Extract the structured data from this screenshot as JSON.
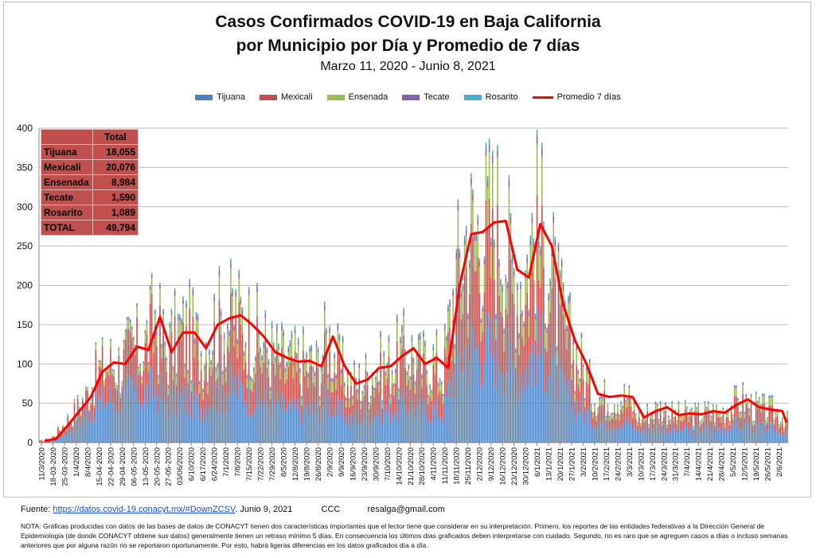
{
  "header": {
    "title_line1": "Casos Confirmados COVID-19 en Baja California",
    "title_line2": "por Municipio por Día y Promedio de 7 días",
    "subtitle": "Marzo 11, 2020  - Junio 8, 2021"
  },
  "colors": {
    "Tijuana": "#4f81bd",
    "Mexicali": "#c0504d",
    "Ensenada": "#9bbb59",
    "Tecate": "#8064a2",
    "Rosarito": "#4bacc6",
    "avg": "#ff0000",
    "table_bg": "#c0504d"
  },
  "legend": [
    "Tijuana",
    "Mexicali",
    "Ensenada",
    "Tecate",
    "Rosarito",
    "Promedio 7 días"
  ],
  "totals_table": {
    "header": "Total",
    "rows": [
      {
        "label": "Tijuana",
        "value": "18,055"
      },
      {
        "label": "Mexicali",
        "value": "20,076"
      },
      {
        "label": "Ensenada",
        "value": "8,984"
      },
      {
        "label": "Tecate",
        "value": "1,590"
      },
      {
        "label": "Rosarito",
        "value": "1,089"
      },
      {
        "label": "TOTAL",
        "value": "49,794"
      }
    ]
  },
  "chart_data": {
    "type": "bar",
    "stacked": true,
    "ylim": [
      0,
      400
    ],
    "yticks": [
      0,
      50,
      100,
      150,
      200,
      250,
      300,
      350,
      400
    ],
    "grid": true,
    "legend_placement": "top",
    "x_tick_labels": [
      "11/3/2020",
      "18-03-2020",
      "25-03-2020",
      "1/4/2020",
      "8/4/2020",
      "15-04-2020",
      "22-04-2020",
      "29-04-2020",
      "06-05-2020",
      "13-05-2020",
      "20-05-2020",
      "27-05-2020",
      "03/06/2020",
      "6/10/2020",
      "6/17/2020",
      "6/24/2020",
      "7/1/2020",
      "7/8/2020",
      "7/15/2020",
      "7/22/2020",
      "7/29/2020",
      "8/5/2020",
      "12/8/2020",
      "19/8/2020",
      "26/8/2020",
      "2/9/2020",
      "9/9/2020",
      "16/9/2020",
      "23/9/2020",
      "30/9/2020",
      "7/10/2020",
      "14/10/2020",
      "21/10/2020",
      "28/10/2020",
      "4/11/2020",
      "11/11/2020",
      "18/11/2020",
      "25/11/2020",
      "2/12/2020",
      "9/12/2020",
      "16/12/2020",
      "23/12/2020",
      "30/12/2020",
      "6/1/2021",
      "13/1/2021",
      "20/1/2021",
      "27/1/2021",
      "3/2/2021",
      "10/2/2021",
      "17/2/2021",
      "24/2/2021",
      "3/3/2021",
      "10/3/2021",
      "17/3/2021",
      "24/3/2021",
      "31/3/2021",
      "7/4/2021",
      "14/4/2021",
      "21/4/2021",
      "28/4/2021",
      "5/5/2021",
      "12/5/2021",
      "19/5/2021",
      "26/5/2021",
      "2/6/2021"
    ],
    "weekly_7day_average": [
      2,
      5,
      22,
      40,
      58,
      90,
      102,
      100,
      122,
      118,
      160,
      115,
      140,
      140,
      120,
      150,
      158,
      162,
      150,
      135,
      115,
      108,
      103,
      104,
      97,
      135,
      98,
      75,
      80,
      95,
      97,
      110,
      120,
      100,
      108,
      95,
      200,
      265,
      268,
      280,
      282,
      220,
      210,
      278,
      250,
      175,
      130,
      100,
      62,
      58,
      60,
      58,
      32,
      40,
      45,
      35,
      37,
      36,
      40,
      38,
      48,
      55,
      45,
      42,
      40,
      25
    ],
    "series": [
      {
        "name": "Tijuana",
        "weekly_typical_daily": [
          1,
          3,
          10,
          20,
          35,
          48,
          55,
          55,
          65,
          60,
          70,
          50,
          55,
          55,
          45,
          60,
          65,
          70,
          60,
          55,
          48,
          45,
          40,
          42,
          40,
          55,
          38,
          30,
          32,
          40,
          40,
          45,
          48,
          40,
          42,
          38,
          90,
          120,
          118,
          120,
          120,
          95,
          90,
          120,
          108,
          75,
          55,
          42,
          28,
          25,
          26,
          25,
          15,
          18,
          20,
          16,
          16,
          16,
          18,
          17,
          22,
          24,
          20,
          18,
          17,
          10
        ]
      },
      {
        "name": "Mexicali",
        "weekly_typical_daily": [
          1,
          2,
          10,
          16,
          20,
          35,
          38,
          36,
          45,
          45,
          70,
          45,
          60,
          60,
          50,
          62,
          62,
          62,
          60,
          52,
          42,
          40,
          40,
          40,
          36,
          50,
          38,
          30,
          32,
          38,
          38,
          42,
          48,
          40,
          42,
          38,
          70,
          95,
          100,
          105,
          105,
          80,
          78,
          100,
          90,
          65,
          48,
          38,
          22,
          22,
          22,
          21,
          11,
          14,
          16,
          12,
          13,
          12,
          14,
          13,
          17,
          20,
          16,
          15,
          14,
          10
        ]
      },
      {
        "name": "Ensenada",
        "weekly_typical_daily": [
          0,
          0,
          2,
          3,
          2,
          5,
          7,
          7,
          9,
          10,
          15,
          15,
          18,
          18,
          18,
          20,
          22,
          22,
          22,
          20,
          18,
          16,
          16,
          15,
          15,
          22,
          16,
          10,
          11,
          12,
          13,
          16,
          17,
          14,
          16,
          14,
          30,
          38,
          38,
          43,
          45,
          35,
          32,
          45,
          40,
          27,
          20,
          15,
          9,
          8,
          9,
          9,
          4,
          5,
          6,
          5,
          6,
          6,
          6,
          6,
          7,
          8,
          7,
          7,
          7,
          4
        ]
      },
      {
        "name": "Tecate",
        "weekly_typical_daily": [
          0,
          0,
          0,
          1,
          1,
          1,
          1,
          1,
          2,
          2,
          3,
          3,
          4,
          4,
          4,
          5,
          5,
          5,
          5,
          5,
          4,
          4,
          4,
          4,
          3,
          5,
          4,
          3,
          3,
          3,
          3,
          4,
          4,
          3,
          4,
          3,
          6,
          7,
          7,
          7,
          7,
          6,
          6,
          8,
          7,
          5,
          4,
          3,
          2,
          2,
          2,
          2,
          1,
          2,
          2,
          1,
          1,
          1,
          1,
          1,
          1,
          2,
          1,
          1,
          1,
          1
        ]
      },
      {
        "name": "Rosarito",
        "weekly_typical_daily": [
          0,
          0,
          0,
          0,
          0,
          1,
          1,
          1,
          1,
          1,
          2,
          2,
          3,
          3,
          3,
          3,
          4,
          3,
          3,
          3,
          3,
          3,
          3,
          3,
          3,
          3,
          2,
          2,
          2,
          2,
          3,
          3,
          3,
          3,
          3,
          2,
          4,
          5,
          5,
          5,
          5,
          4,
          4,
          5,
          5,
          3,
          3,
          2,
          1,
          1,
          1,
          1,
          1,
          1,
          1,
          1,
          1,
          1,
          1,
          1,
          1,
          1,
          1,
          1,
          1,
          0
        ]
      }
    ]
  },
  "footer": {
    "fuente_label": "Fuente:",
    "fuente_link": "https://datos.covid-19.conacyt.mx/#DownZCSV",
    "fuente_date": ". Junio 9, 2021",
    "ccc": "CCC",
    "email": "resalga@gmail.com",
    "nota": "NOTA: Gráficas producidas con datos de las bases de datos de CONACYT tienen dos características importantes que el lector tiene que considerar en su interpretación. Primero, los reportes de las entidades federativas a la Dirección General de Epidemiologia (de donde CONACYT obtiene sus datos) generalmente tienen un retraso mínimo 5 días. En consecuencia los últimos días graficados deben interpretarse con cuidado. Segundo, no es raro que se agreguen casos a días o incluso semanas anteriores que por alguna razón no se reportaron oportunamente. Por esto, habrá ligeras diferencias en los datos graficados día a día."
  }
}
